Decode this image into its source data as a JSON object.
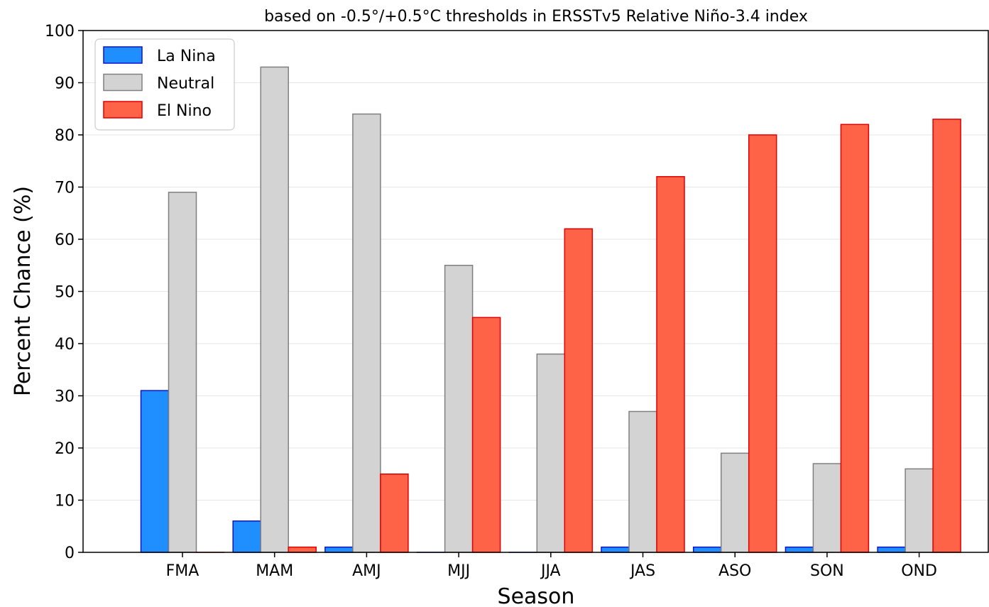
{
  "chart_data": {
    "type": "bar",
    "title": "based on -0.5°/+0.5°C thresholds in ERSSTv5 Relative Niño-3.4 index",
    "xlabel": "Season",
    "ylabel": "Percent Chance (%)",
    "ylim": [
      0,
      100
    ],
    "yticks": [
      "0",
      "10",
      "20",
      "30",
      "40",
      "50",
      "60",
      "70",
      "80",
      "90",
      "100"
    ],
    "grid": "horizontal",
    "legend_position": "top-left",
    "categories": [
      "FMA",
      "MAM",
      "AMJ",
      "MJJ",
      "JJA",
      "JAS",
      "ASO",
      "SON",
      "OND"
    ],
    "series": [
      {
        "name": "La Nina",
        "color": "#1f8fff",
        "edge": "#1010d0",
        "values": [
          31,
          6,
          1,
          0,
          0,
          1,
          1,
          1,
          1
        ]
      },
      {
        "name": "Neutral",
        "color": "#d3d3d3",
        "edge": "#808080",
        "values": [
          69,
          93,
          84,
          55,
          38,
          27,
          19,
          17,
          16
        ]
      },
      {
        "name": "El Nino",
        "color": "#ff6347",
        "edge": "#e00000",
        "values": [
          0,
          1,
          15,
          45,
          62,
          72,
          80,
          82,
          83
        ]
      }
    ]
  }
}
